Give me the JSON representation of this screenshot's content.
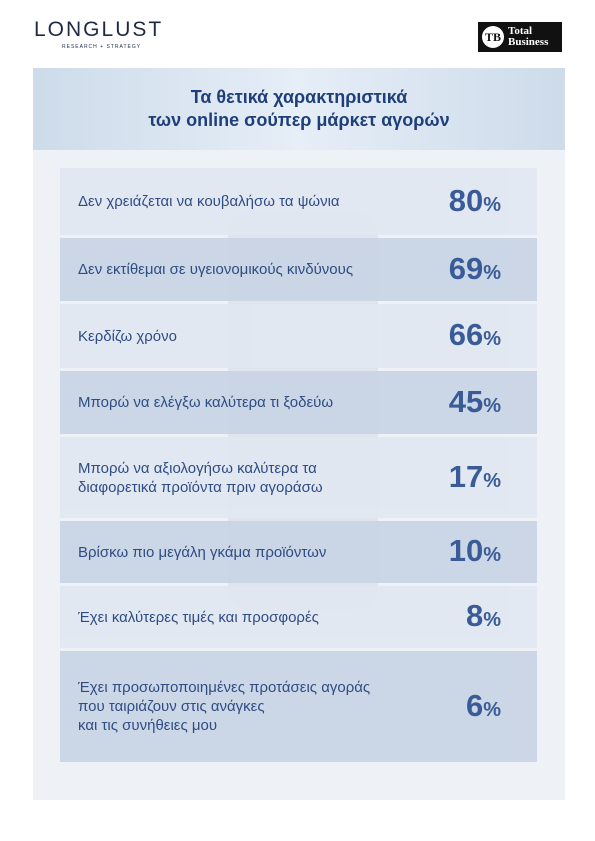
{
  "header": {
    "logo_left": "LONGLUST",
    "logo_left_sub": "RESEARCH + STRATEGY",
    "logo_right": [
      "Total",
      "Business"
    ]
  },
  "title": [
    "Τα θετικά χαρακτηριστικά",
    "των online σούπερ μάρκετ αγορών"
  ],
  "items": [
    {
      "label": [
        "Δεν χρειάζεται να κουβαλήσω τα ψώνια"
      ],
      "percent": "80%"
    },
    {
      "label": [
        "Δεν εκτίθεμαι σε υγειονομικούς κινδύνους"
      ],
      "percent": "69%"
    },
    {
      "label": [
        "Κερδίζω χρόνο"
      ],
      "percent": "66%"
    },
    {
      "label": [
        "Μπορώ να ελέγξω καλύτερα τι ξοδεύω"
      ],
      "percent": "45%"
    },
    {
      "label": [
        "Μπορώ να αξιολογήσω καλύτερα τα",
        "διαφορετικά προϊόντα πριν αγοράσω"
      ],
      "percent": "17%"
    },
    {
      "label": [
        "Βρίσκω πιο μεγάλη γκάμα προϊόντων"
      ],
      "percent": "10%"
    },
    {
      "label": [
        "Έχει καλύτερες τιμές και προσφορές"
      ],
      "percent": "8%"
    },
    {
      "label": [
        "Έχει προσωποποιημένες προτάσεις αγοράς",
        "που ταιριάζουν στις ανάγκες",
        "και τις συνήθειες μου"
      ],
      "percent": "6%"
    }
  ]
}
